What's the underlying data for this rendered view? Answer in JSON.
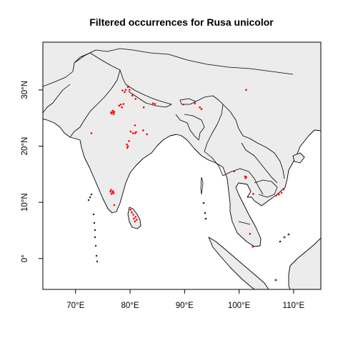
{
  "map": {
    "title": "Filtered occurrences for Rusa unicolor",
    "x_ticks": [
      {
        "value": 70,
        "label": "70°E"
      },
      {
        "value": 80,
        "label": "80°E"
      },
      {
        "value": 90,
        "label": "90°E"
      },
      {
        "value": 100,
        "label": "100°E"
      },
      {
        "value": 110,
        "label": "110°E"
      }
    ],
    "y_ticks": [
      {
        "value": 0,
        "label": "0°"
      },
      {
        "value": 10,
        "label": "10°N"
      },
      {
        "value": 20,
        "label": "20°N"
      },
      {
        "value": 30,
        "label": "30°N"
      }
    ],
    "lon_range": [
      64,
      115
    ],
    "lat_range": [
      -5.5,
      38.5
    ],
    "land_color": "#ececec",
    "point_color": "#ff0000",
    "occurrences": [
      [
        79.2,
        30.0
      ],
      [
        79.6,
        30.5
      ],
      [
        79.9,
        30.0
      ],
      [
        78.6,
        29.9
      ],
      [
        79.0,
        29.6
      ],
      [
        78.3,
        27.4
      ],
      [
        78.8,
        27.5
      ],
      [
        78.0,
        27.2
      ],
      [
        78.5,
        26.9
      ],
      [
        76.6,
        25.8
      ],
      [
        76.9,
        26.0
      ],
      [
        77.1,
        26.1
      ],
      [
        76.8,
        26.3
      ],
      [
        76.5,
        26.0
      ],
      [
        77.0,
        25.7
      ],
      [
        80.4,
        29.0
      ],
      [
        81.0,
        28.4
      ],
      [
        82.5,
        26.9
      ],
      [
        84.2,
        27.6
      ],
      [
        84.6,
        27.5
      ],
      [
        89.8,
        27.4
      ],
      [
        91.9,
        27.6
      ],
      [
        92.8,
        26.9
      ],
      [
        93.1,
        26.6
      ],
      [
        80.9,
        23.7
      ],
      [
        80.5,
        22.3
      ],
      [
        80.1,
        22.6
      ],
      [
        80.9,
        22.3
      ],
      [
        81.1,
        22.5
      ],
      [
        82.4,
        22.8
      ],
      [
        83.1,
        22.1
      ],
      [
        79.4,
        20.3
      ],
      [
        79.6,
        20.0
      ],
      [
        79.5,
        19.7
      ],
      [
        79.8,
        20.9
      ],
      [
        72.9,
        22.3
      ],
      [
        76.5,
        12.2
      ],
      [
        76.8,
        11.8
      ],
      [
        76.6,
        11.5
      ],
      [
        76.4,
        11.9
      ],
      [
        77.0,
        11.6
      ],
      [
        76.9,
        12.0
      ],
      [
        77.1,
        9.5
      ],
      [
        80.1,
        8.7
      ],
      [
        80.3,
        8.2
      ],
      [
        80.7,
        7.1
      ],
      [
        80.9,
        6.6
      ],
      [
        81.2,
        6.9
      ],
      [
        81.0,
        7.4
      ],
      [
        80.6,
        7.8
      ],
      [
        101.3,
        30.0
      ],
      [
        99.1,
        15.5
      ],
      [
        101.1,
        14.6
      ],
      [
        101.2,
        14.3
      ],
      [
        101.3,
        14.5
      ],
      [
        102.6,
        11.5
      ],
      [
        107.3,
        11.4
      ],
      [
        107.8,
        11.7
      ],
      [
        108.2,
        12.3
      ],
      [
        106.8,
        11.2
      ],
      [
        102.0,
        4.4
      ],
      [
        102.5,
        2.1
      ]
    ]
  }
}
